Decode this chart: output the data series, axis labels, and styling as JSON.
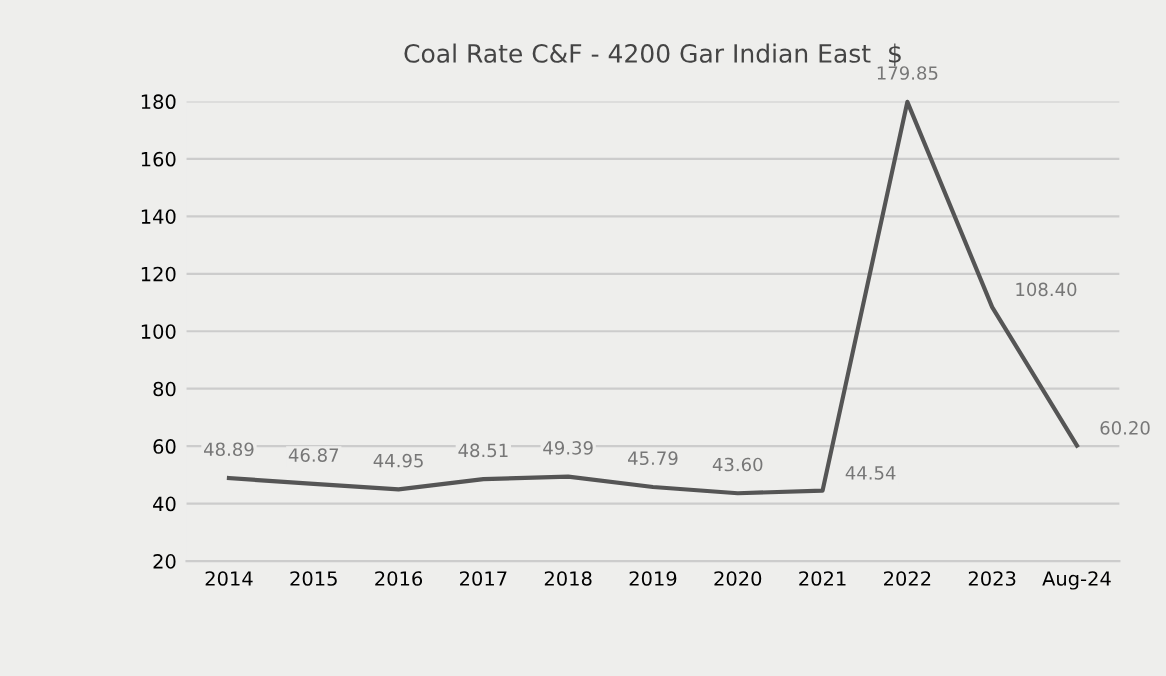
{
  "chart_data": {
    "type": "line",
    "title": "Coal Rate C&F - 4200 Gar Indian East  $",
    "categories": [
      "2014",
      "2015",
      "2016",
      "2017",
      "2018",
      "2019",
      "2020",
      "2021",
      "2022",
      "2023",
      "Aug-24"
    ],
    "series": [
      {
        "color": "#555555",
        "values": [
          48.89,
          46.87,
          44.95,
          48.51,
          49.39,
          45.79,
          43.6,
          44.54,
          179.85,
          108.4,
          60.2
        ],
        "value_labels": [
          "48.89",
          "46.87",
          "44.95",
          "48.51",
          "49.39",
          "45.79",
          "43.60",
          "44.54",
          "179.85",
          "108.40",
          "60.20"
        ]
      }
    ],
    "ylim": [
      20,
      180
    ],
    "yticks": [
      20,
      40,
      60,
      80,
      100,
      120,
      140,
      160,
      180
    ],
    "grid": "y",
    "legend": false,
    "marker": "none",
    "line_style": "solid"
  }
}
